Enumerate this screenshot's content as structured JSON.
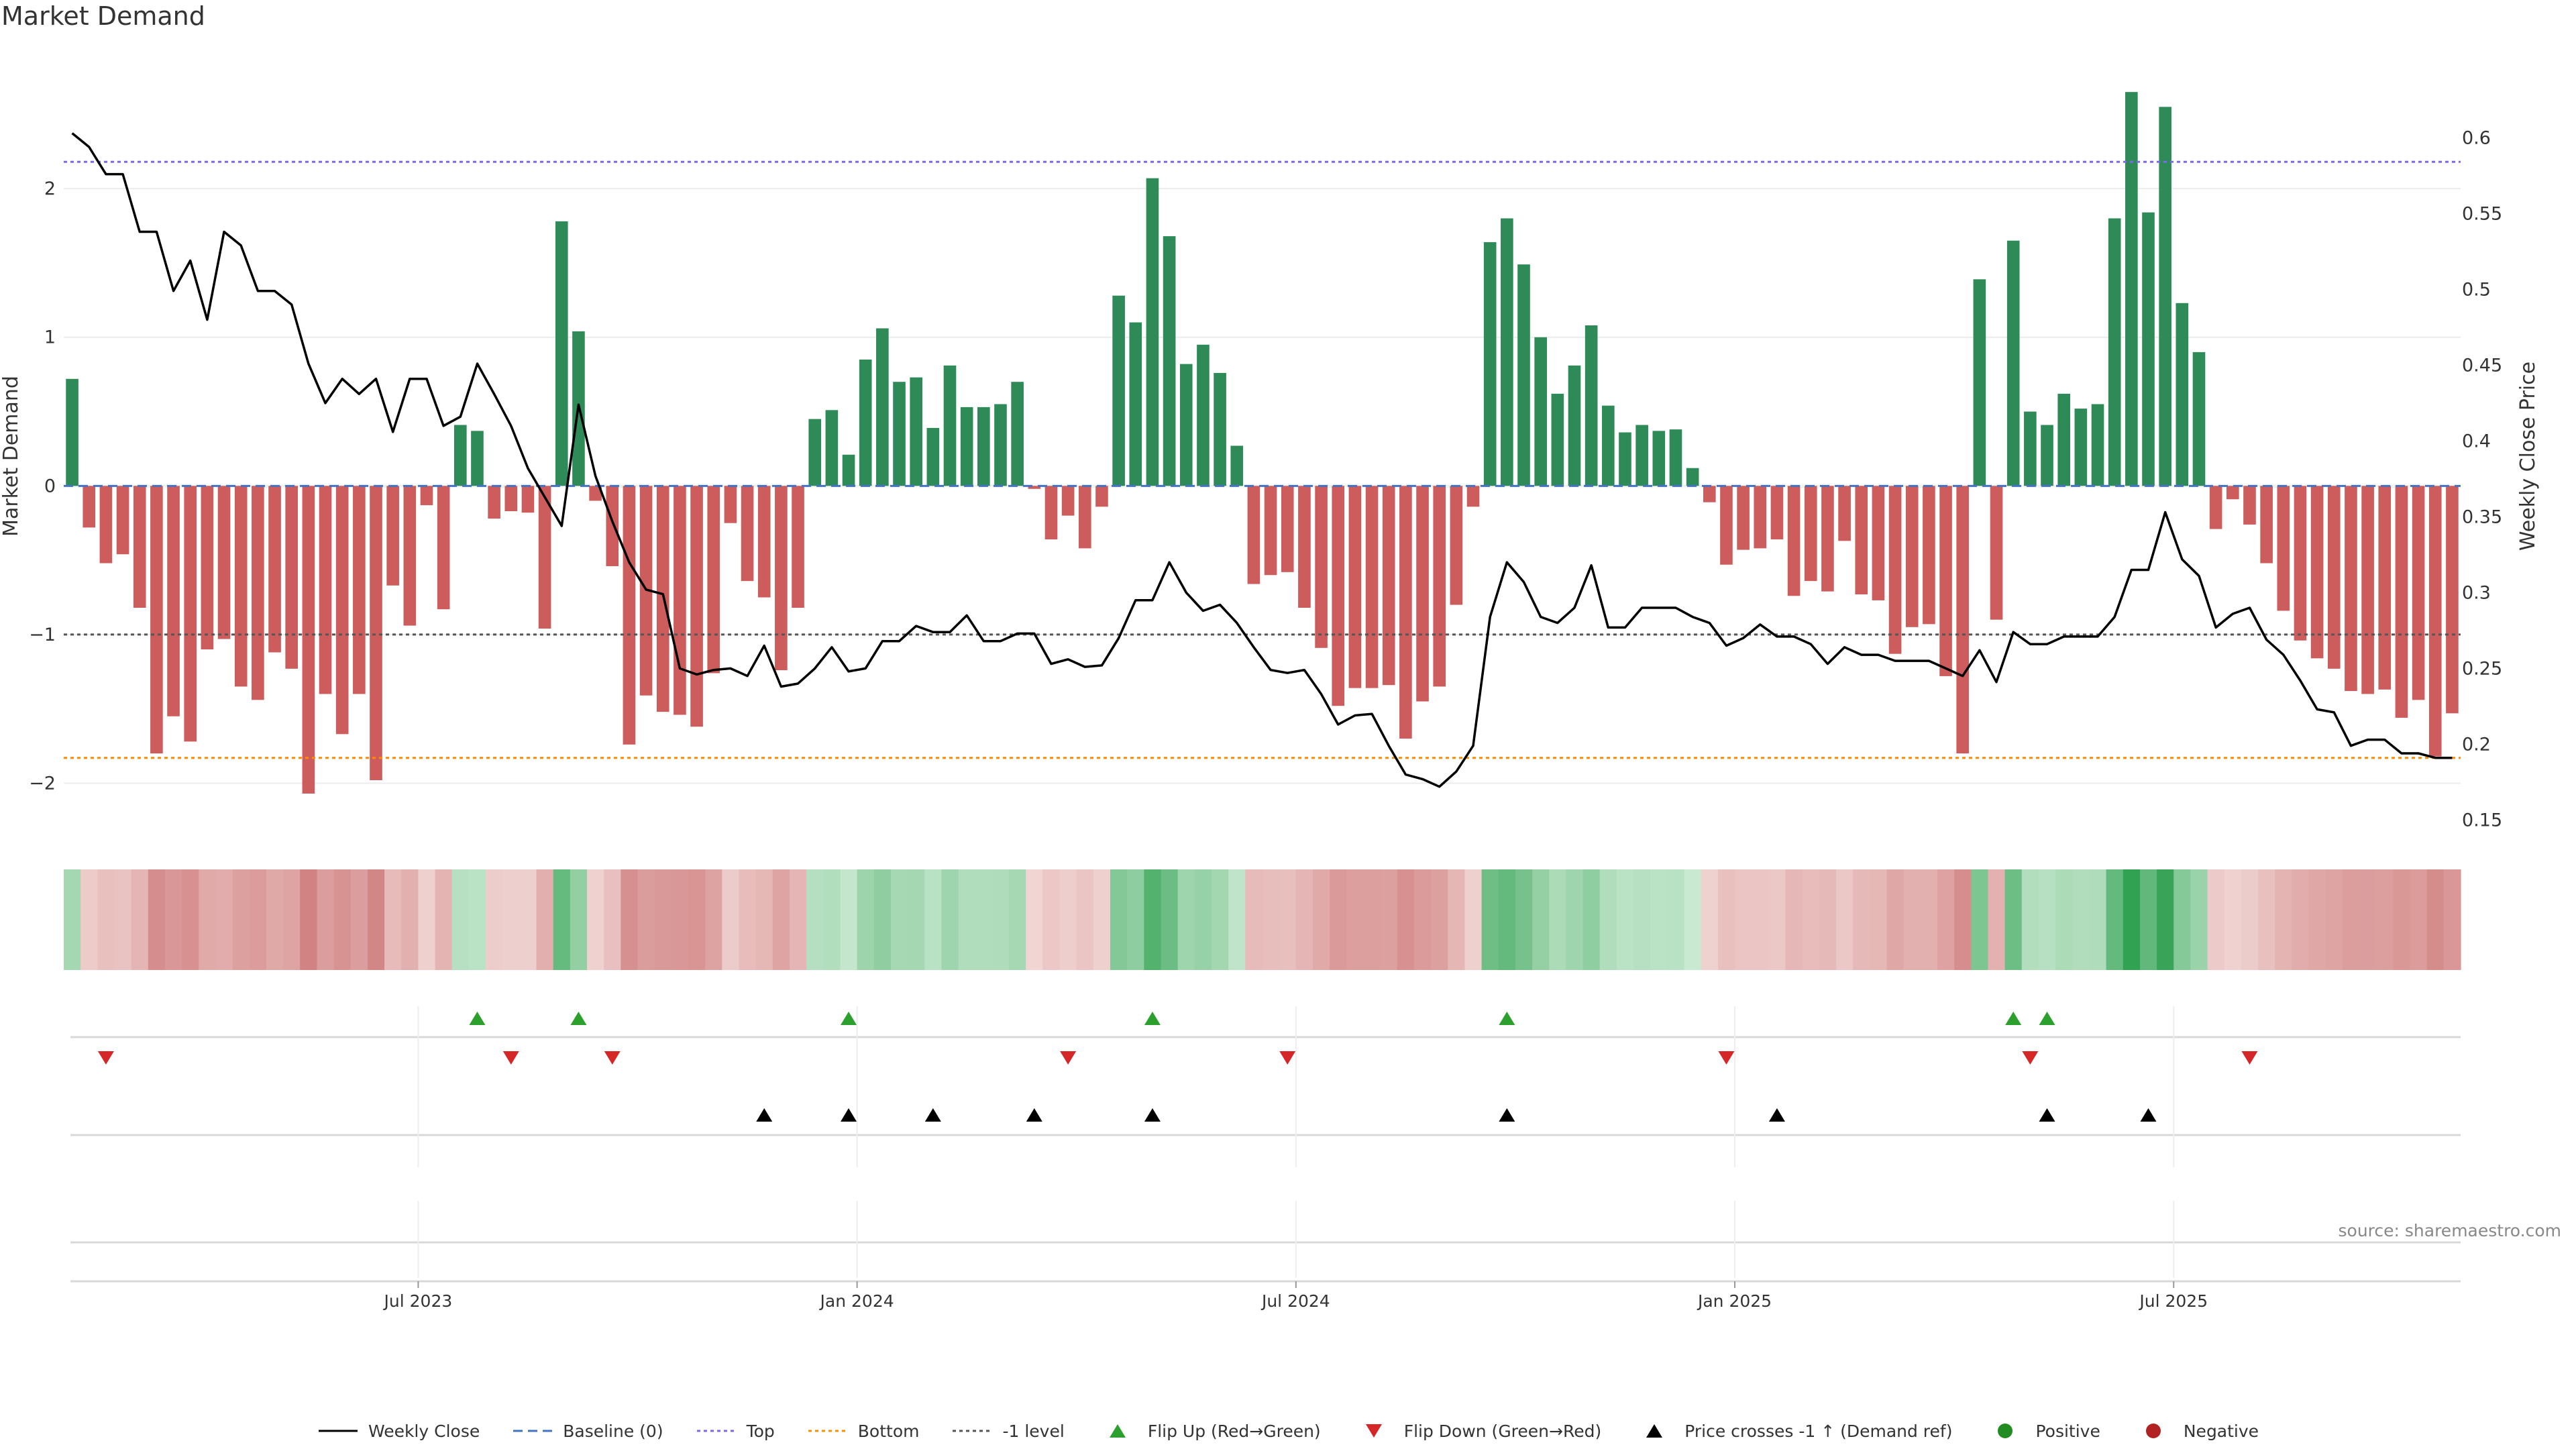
{
  "title": "Market Demand",
  "source": "source: sharemaestro.com",
  "colors": {
    "positive_bar": "#2e8b57",
    "negative_bar": "#cd5c5c",
    "price_line": "#000000",
    "baseline": "#4472c4",
    "top": "#7b68ee",
    "bottom": "#ff8c00",
    "minus_one": "#555555",
    "flip_up": "#2ca02c",
    "flip_down": "#d62728",
    "cross": "#000000",
    "positive_dot": "#228b22",
    "negative_dot": "#b22222"
  },
  "legend": [
    {
      "label": "Weekly Close",
      "kind": "line",
      "color": "#000000",
      "dash": ""
    },
    {
      "label": "Baseline (0)",
      "kind": "line",
      "color": "#4472c4",
      "dash": "14,8"
    },
    {
      "label": "Top",
      "kind": "line",
      "color": "#7b68ee",
      "dash": "5,5"
    },
    {
      "label": "Bottom",
      "kind": "line",
      "color": "#ff8c00",
      "dash": "5,5"
    },
    {
      "label": "-1 level",
      "kind": "line",
      "color": "#555555",
      "dash": "5,5"
    },
    {
      "label": "Flip Up (Red→Green)",
      "kind": "tri-up",
      "color": "#2ca02c"
    },
    {
      "label": "Flip Down (Green→Red)",
      "kind": "tri-down",
      "color": "#d62728"
    },
    {
      "label": "Price crosses -1 ↑ (Demand ref)",
      "kind": "tri-up",
      "color": "#000000"
    },
    {
      "label": "Positive",
      "kind": "dot",
      "color": "#228b22"
    },
    {
      "label": "Negative",
      "kind": "dot",
      "color": "#b22222"
    }
  ],
  "chart_data": {
    "type": "bar",
    "title": "Market Demand",
    "ylabel": "Market Demand",
    "y2label": "Weekly Close Price",
    "ylim": [
      -2.35,
      2.75
    ],
    "y2lim": [
      0.14,
      0.64
    ],
    "yticks": [
      {
        "v": 2,
        "label": "2"
      },
      {
        "v": 1,
        "label": "1"
      },
      {
        "v": 0,
        "label": "0"
      },
      {
        "v": -1,
        "label": "−1"
      },
      {
        "v": -2,
        "label": "−2"
      }
    ],
    "y2ticks": [
      {
        "v": 0.6,
        "label": "0.6"
      },
      {
        "v": 0.55,
        "label": "0.55"
      },
      {
        "v": 0.5,
        "label": "0.5"
      },
      {
        "v": 0.45,
        "label": "0.45"
      },
      {
        "v": 0.4,
        "label": "0.4"
      },
      {
        "v": 0.35,
        "label": "0.35"
      },
      {
        "v": 0.3,
        "label": "0.3"
      },
      {
        "v": 0.25,
        "label": "0.25"
      },
      {
        "v": 0.2,
        "label": "0.2"
      },
      {
        "v": 0.15,
        "label": "0.15"
      }
    ],
    "xticks": [
      {
        "week": 21,
        "label": "Jul 2023"
      },
      {
        "week": 47,
        "label": "Jan 2024"
      },
      {
        "week": 73,
        "label": "Jul 2024"
      },
      {
        "week": 99,
        "label": "Jan 2025"
      },
      {
        "week": 125,
        "label": "Jul 2025"
      }
    ],
    "levels": {
      "baseline": 0,
      "top": 2.18,
      "bottom": -1.83,
      "minus_one": -1
    },
    "demand": [
      0.72,
      -0.28,
      -0.52,
      -0.46,
      -0.82,
      -1.8,
      -1.55,
      -1.72,
      -1.1,
      -1.03,
      -1.35,
      -1.44,
      -1.12,
      -1.23,
      -2.07,
      -1.4,
      -1.67,
      -1.4,
      -1.98,
      -0.67,
      -0.94,
      -0.13,
      -0.83,
      0.41,
      0.37,
      -0.22,
      -0.17,
      -0.18,
      -0.96,
      1.78,
      1.04,
      -0.1,
      -0.54,
      -1.74,
      -1.41,
      -1.52,
      -1.54,
      -1.62,
      -1.26,
      -0.25,
      -0.64,
      -0.75,
      -1.24,
      -0.82,
      0.45,
      0.51,
      0.21,
      0.85,
      1.06,
      0.7,
      0.73,
      0.39,
      0.81,
      0.53,
      0.53,
      0.55,
      0.7,
      -0.02,
      -0.36,
      -0.2,
      -0.42,
      -0.14,
      1.28,
      1.1,
      2.07,
      1.68,
      0.82,
      0.95,
      0.76,
      0.27,
      -0.66,
      -0.6,
      -0.58,
      -0.82,
      -1.09,
      -1.48,
      -1.36,
      -1.36,
      -1.34,
      -1.7,
      -1.45,
      -1.35,
      -0.8,
      -0.14,
      1.64,
      1.8,
      1.49,
      1.0,
      0.62,
      0.81,
      1.08,
      0.54,
      0.36,
      0.41,
      0.37,
      0.38,
      0.12,
      -0.11,
      -0.53,
      -0.43,
      -0.42,
      -0.36,
      -0.74,
      -0.64,
      -0.71,
      -0.37,
      -0.73,
      -0.77,
      -1.13,
      -0.95,
      -0.93,
      -1.28,
      -1.8,
      1.39,
      -0.9,
      1.65,
      0.5,
      0.41,
      0.62,
      0.52,
      0.55,
      1.8,
      2.65,
      1.84,
      2.55,
      1.23,
      0.9,
      -0.29,
      -0.09,
      -0.26,
      -0.52,
      -0.84,
      -1.04,
      -1.16,
      -1.23,
      -1.38,
      -1.4,
      -1.37,
      -1.56,
      -1.44,
      -1.82,
      -1.53
    ],
    "price": [
      0.603,
      0.594,
      0.576,
      0.576,
      0.538,
      0.538,
      0.499,
      0.519,
      0.48,
      0.538,
      0.529,
      0.499,
      0.499,
      0.49,
      0.451,
      0.425,
      0.441,
      0.431,
      0.441,
      0.406,
      0.441,
      0.441,
      0.41,
      0.416,
      0.451,
      0.431,
      0.41,
      0.382,
      0.363,
      0.344,
      0.424,
      0.377,
      0.347,
      0.32,
      0.302,
      0.299,
      0.25,
      0.246,
      0.249,
      0.25,
      0.245,
      0.265,
      0.238,
      0.24,
      0.25,
      0.264,
      0.248,
      0.25,
      0.268,
      0.268,
      0.278,
      0.274,
      0.274,
      0.285,
      0.268,
      0.268,
      0.273,
      0.273,
      0.253,
      0.256,
      0.251,
      0.252,
      0.27,
      0.295,
      0.295,
      0.32,
      0.3,
      0.288,
      0.292,
      0.28,
      0.264,
      0.249,
      0.247,
      0.249,
      0.233,
      0.213,
      0.219,
      0.22,
      0.199,
      0.18,
      0.177,
      0.172,
      0.182,
      0.199,
      0.284,
      0.32,
      0.307,
      0.284,
      0.28,
      0.29,
      0.318,
      0.277,
      0.277,
      0.29,
      0.29,
      0.29,
      0.284,
      0.28,
      0.265,
      0.27,
      0.279,
      0.271,
      0.271,
      0.266,
      0.253,
      0.264,
      0.259,
      0.259,
      0.255,
      0.255,
      0.255,
      0.25,
      0.245,
      0.262,
      0.241,
      0.274,
      0.266,
      0.266,
      0.271,
      0.271,
      0.271,
      0.284,
      0.315,
      0.315,
      0.353,
      0.322,
      0.311,
      0.277,
      0.286,
      0.29,
      0.269,
      0.259,
      0.242,
      0.223,
      0.221,
      0.199,
      0.203,
      0.203,
      0.194,
      0.194,
      0.191,
      0.191
    ],
    "strip": [
      0.72,
      -0.28,
      -0.52,
      -0.46,
      -0.82,
      -1.8,
      -1.55,
      -1.72,
      -1.1,
      -1.03,
      -1.35,
      -1.44,
      -1.12,
      -1.23,
      -2.07,
      -1.4,
      -1.67,
      -1.4,
      -1.98,
      -0.67,
      -0.94,
      -0.13,
      -0.83,
      0.41,
      0.37,
      -0.22,
      -0.17,
      -0.18,
      -0.96,
      1.78,
      1.04,
      -0.1,
      -0.54,
      -1.74,
      -1.41,
      -1.52,
      -1.54,
      -1.62,
      -1.26,
      -0.25,
      -0.64,
      -0.75,
      -1.24,
      -0.82,
      0.45,
      0.51,
      0.21,
      0.85,
      1.06,
      0.7,
      0.73,
      0.39,
      0.81,
      0.53,
      0.53,
      0.55,
      0.7,
      -0.02,
      -0.36,
      -0.2,
      -0.42,
      -0.14,
      1.28,
      1.1,
      2.07,
      1.68,
      0.82,
      0.95,
      0.76,
      0.27,
      -0.66,
      -0.6,
      -0.58,
      -0.82,
      -1.09,
      -1.48,
      -1.36,
      -1.36,
      -1.34,
      -1.7,
      -1.45,
      -1.35,
      -0.8,
      -0.14,
      1.64,
      1.8,
      1.49,
      1.0,
      0.62,
      0.81,
      1.08,
      0.54,
      0.36,
      0.41,
      0.37,
      0.38,
      0.12,
      -0.11,
      -0.53,
      -0.43,
      -0.42,
      -0.36,
      -0.74,
      -0.64,
      -0.71,
      -0.37,
      -0.73,
      -0.77,
      -1.13,
      -0.95,
      -0.93,
      -1.28,
      -1.8,
      1.39,
      -0.9,
      1.65,
      0.5,
      0.41,
      0.62,
      0.52,
      0.55,
      1.8,
      2.65,
      1.84,
      2.55,
      1.23,
      0.9,
      -0.29,
      -0.09,
      -0.26,
      -0.52,
      -0.84,
      -1.04,
      -1.16,
      -1.23,
      -1.38,
      -1.4,
      -1.37,
      -1.56,
      -1.44,
      -1.82,
      -1.53
    ],
    "flip_up_weeks": [
      24,
      30,
      46,
      64,
      85,
      115,
      117
    ],
    "flip_down_weeks": [
      2,
      26,
      32,
      59,
      72,
      98,
      116,
      129
    ],
    "cross_up_weeks": [
      41,
      46,
      51,
      57,
      64,
      85,
      101,
      117,
      123
    ]
  }
}
